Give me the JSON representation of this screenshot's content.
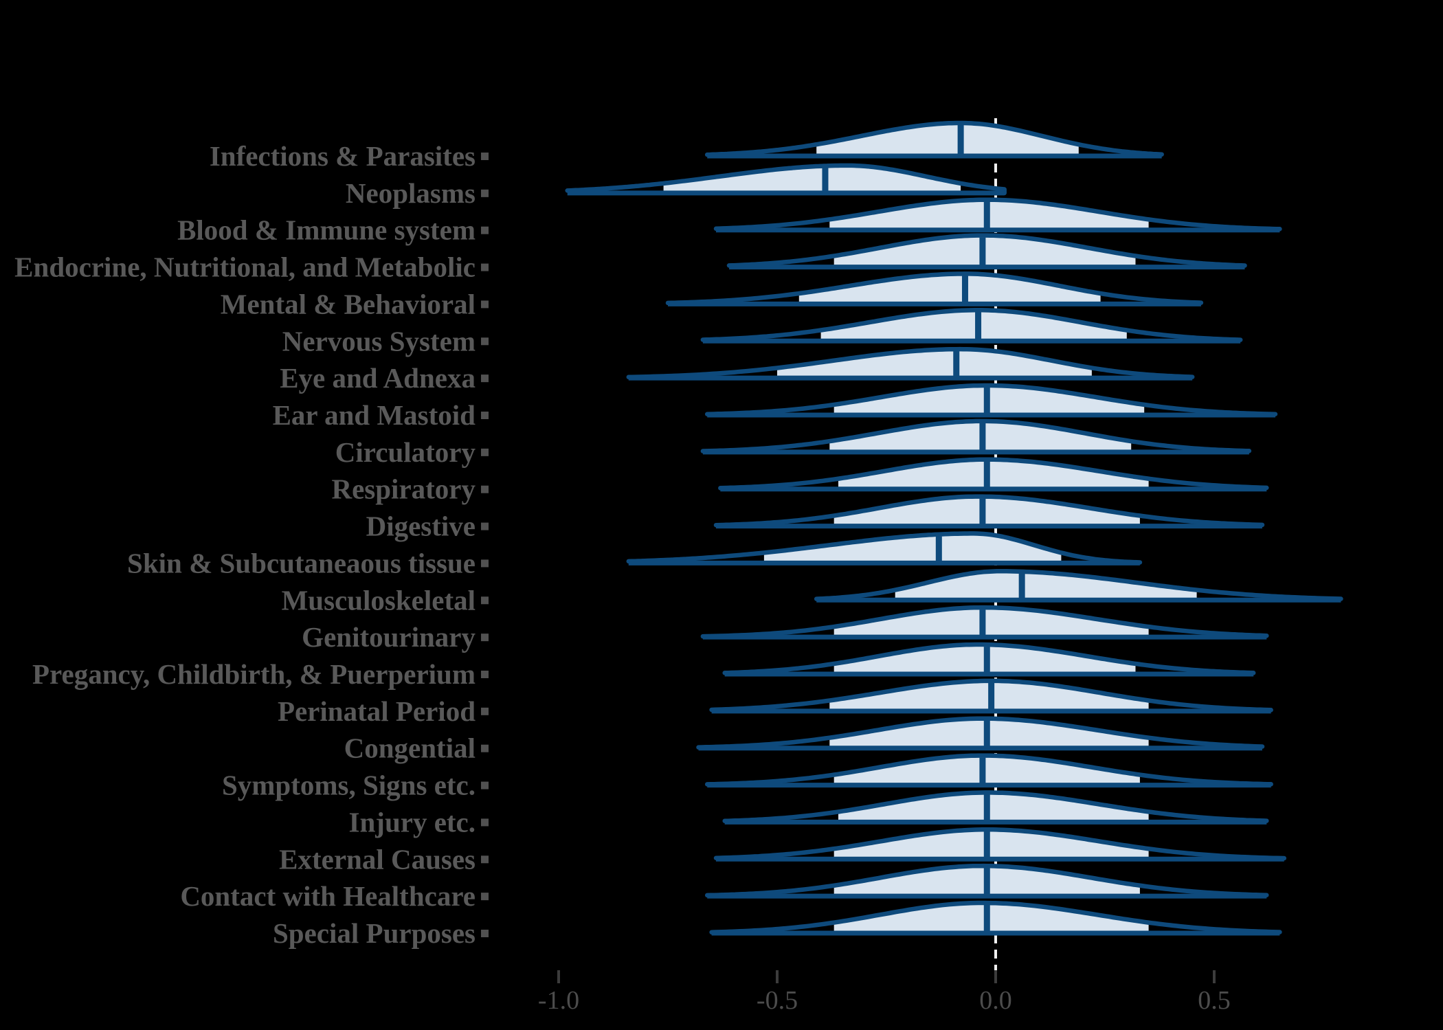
{
  "chart_data": {
    "type": "ridgeline-density",
    "description": "Half-violin density ridges per ICD chapter with median line, central-interval shading, full-range baseline whisker, and a dashed reference line at 0",
    "xlabel": "",
    "ylabel": "",
    "x_ticks": [
      -1.0,
      -0.5,
      0.0,
      0.5
    ],
    "x_tick_labels": [
      "-1.0",
      "-0.5",
      "0.0",
      "0.5"
    ],
    "xlim": [
      -1.4,
      1.0
    ],
    "reference_line_x": 0.0,
    "grid": false,
    "legend": "none",
    "rows": [
      {
        "label": "Infections & Parasites",
        "min": -0.66,
        "q_lo": -0.41,
        "median": -0.08,
        "q_hi": 0.19,
        "max": 0.38,
        "mode": -0.08,
        "peak": 48
      },
      {
        "label": "Neoplasms",
        "min": -0.98,
        "q_lo": -0.76,
        "median": -0.39,
        "q_hi": -0.08,
        "max": 0.02,
        "mode": -0.34,
        "peak": 40
      },
      {
        "label": "Blood & Immune system",
        "min": -0.64,
        "q_lo": -0.38,
        "median": -0.02,
        "q_hi": 0.35,
        "max": 0.65,
        "mode": -0.02,
        "peak": 44
      },
      {
        "label": "Endocrine, Nutritional, and Metabolic",
        "min": -0.61,
        "q_lo": -0.37,
        "median": -0.03,
        "q_hi": 0.32,
        "max": 0.57,
        "mode": -0.03,
        "peak": 46
      },
      {
        "label": "Mental & Behavioral",
        "min": -0.75,
        "q_lo": -0.45,
        "median": -0.07,
        "q_hi": 0.24,
        "max": 0.47,
        "mode": -0.07,
        "peak": 44
      },
      {
        "label": "Nervous System",
        "min": -0.67,
        "q_lo": -0.4,
        "median": -0.04,
        "q_hi": 0.3,
        "max": 0.56,
        "mode": -0.04,
        "peak": 45
      },
      {
        "label": "Eye and Adnexa",
        "min": -0.84,
        "q_lo": -0.5,
        "median": -0.09,
        "q_hi": 0.22,
        "max": 0.45,
        "mode": -0.08,
        "peak": 42
      },
      {
        "label": "Ear and Mastoid",
        "min": -0.66,
        "q_lo": -0.37,
        "median": -0.02,
        "q_hi": 0.34,
        "max": 0.64,
        "mode": -0.02,
        "peak": 43
      },
      {
        "label": "Circulatory",
        "min": -0.67,
        "q_lo": -0.38,
        "median": -0.03,
        "q_hi": 0.31,
        "max": 0.58,
        "mode": -0.03,
        "peak": 45
      },
      {
        "label": "Respiratory",
        "min": -0.63,
        "q_lo": -0.36,
        "median": -0.02,
        "q_hi": 0.35,
        "max": 0.62,
        "mode": -0.02,
        "peak": 43
      },
      {
        "label": "Digestive",
        "min": -0.64,
        "q_lo": -0.37,
        "median": -0.03,
        "q_hi": 0.33,
        "max": 0.61,
        "mode": -0.04,
        "peak": 43
      },
      {
        "label": "Skin & Subcutaneaous tissue",
        "min": -0.84,
        "q_lo": -0.53,
        "median": -0.13,
        "q_hi": 0.15,
        "max": 0.33,
        "mode": -0.05,
        "peak": 43
      },
      {
        "label": "Musculoskeletal",
        "min": -0.41,
        "q_lo": -0.23,
        "median": 0.06,
        "q_hi": 0.46,
        "max": 0.79,
        "mode": 0.01,
        "peak": 42
      },
      {
        "label": "Genitourinary",
        "min": -0.67,
        "q_lo": -0.37,
        "median": -0.03,
        "q_hi": 0.35,
        "max": 0.62,
        "mode": -0.03,
        "peak": 43
      },
      {
        "label": "Pregancy, Childbirth, & Puerperium",
        "min": -0.62,
        "q_lo": -0.37,
        "median": -0.02,
        "q_hi": 0.32,
        "max": 0.59,
        "mode": -0.04,
        "peak": 43
      },
      {
        "label": "Perinatal Period",
        "min": -0.65,
        "q_lo": -0.38,
        "median": -0.01,
        "q_hi": 0.35,
        "max": 0.63,
        "mode": -0.01,
        "peak": 44
      },
      {
        "label": "Congential",
        "min": -0.68,
        "q_lo": -0.38,
        "median": -0.02,
        "q_hi": 0.35,
        "max": 0.61,
        "mode": -0.03,
        "peak": 43
      },
      {
        "label": "Symptoms, Signs etc.",
        "min": -0.66,
        "q_lo": -0.37,
        "median": -0.03,
        "q_hi": 0.33,
        "max": 0.63,
        "mode": -0.03,
        "peak": 43
      },
      {
        "label": "Injury etc.",
        "min": -0.62,
        "q_lo": -0.36,
        "median": -0.02,
        "q_hi": 0.35,
        "max": 0.62,
        "mode": -0.02,
        "peak": 43
      },
      {
        "label": "External Causes",
        "min": -0.64,
        "q_lo": -0.37,
        "median": -0.02,
        "q_hi": 0.35,
        "max": 0.66,
        "mode": -0.02,
        "peak": 43
      },
      {
        "label": "Contact with Healthcare",
        "min": -0.66,
        "q_lo": -0.37,
        "median": -0.02,
        "q_hi": 0.33,
        "max": 0.62,
        "mode": -0.03,
        "peak": 44
      },
      {
        "label": "Special Purposes",
        "min": -0.65,
        "q_lo": -0.37,
        "median": -0.02,
        "q_hi": 0.35,
        "max": 0.65,
        "mode": -0.03,
        "peak": 44
      }
    ]
  },
  "colors": {
    "background": "#000000",
    "violin_stroke": "#0e4a7c",
    "violin_fill": "#d9e4ef",
    "reference_line": "#f0f0f0",
    "category_label": "#595959",
    "category_tick_square": "#515151",
    "axis_tick": "#3c3c3c",
    "axis_tick_label": "#4c4c4c"
  }
}
